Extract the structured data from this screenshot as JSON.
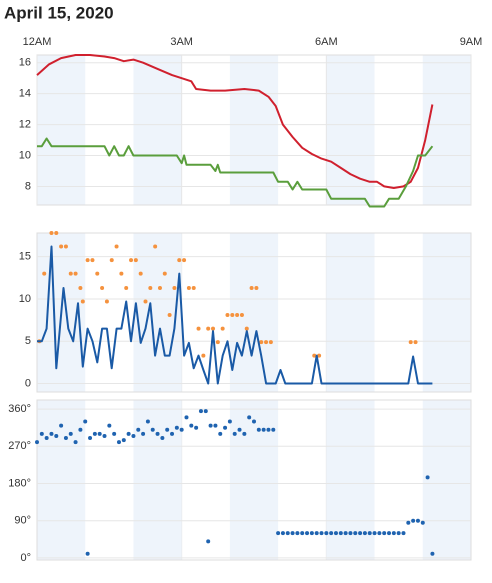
{
  "title": "April 15, 2020",
  "chart_data": [
    {
      "type": "line",
      "xlim": [
        0,
        9
      ],
      "xticks": [
        {
          "value": 0,
          "label": "12AM"
        },
        {
          "value": 3,
          "label": "3AM"
        },
        {
          "value": 6,
          "label": "6AM"
        },
        {
          "value": 9,
          "label": "9AM"
        }
      ],
      "ylim": [
        6.8,
        16.5
      ],
      "yticks": [
        8,
        10,
        12,
        14,
        16
      ],
      "grid": true,
      "series": [
        {
          "color": "#d0202e",
          "mode": "lines",
          "x": [
            0,
            0.25,
            0.5,
            0.8,
            1.1,
            1.4,
            1.6,
            1.8,
            2.0,
            2.2,
            2.5,
            2.8,
            3.0,
            3.2,
            3.3,
            3.6,
            3.9,
            4.3,
            4.6,
            4.8,
            4.95,
            5.1,
            5.3,
            5.5,
            5.7,
            5.9,
            6.1,
            6.3,
            6.5,
            6.7,
            6.9,
            7.05,
            7.2,
            7.4,
            7.6,
            7.75,
            7.9,
            8.05,
            8.2
          ],
          "values": [
            15.2,
            15.9,
            16.3,
            16.5,
            16.5,
            16.4,
            16.3,
            16.1,
            16.2,
            16.0,
            15.6,
            15.2,
            15.0,
            14.8,
            14.3,
            14.2,
            14.2,
            14.3,
            14.2,
            13.8,
            13.2,
            12.0,
            11.2,
            10.5,
            10.1,
            9.8,
            9.6,
            9.2,
            8.8,
            8.5,
            8.3,
            8.3,
            8.0,
            7.9,
            8.0,
            8.3,
            9.2,
            11.0,
            13.3
          ]
        },
        {
          "color": "#5a9e3c",
          "mode": "lines",
          "x": [
            0,
            0.1,
            0.2,
            0.3,
            1.4,
            1.5,
            1.6,
            1.7,
            1.8,
            1.9,
            2.0,
            2.9,
            3.0,
            3.05,
            3.1,
            3.6,
            3.7,
            3.75,
            3.8,
            4.9,
            5.0,
            5.2,
            5.3,
            5.4,
            5.5,
            6.0,
            6.1,
            6.8,
            6.9,
            7.2,
            7.3,
            7.5,
            7.65,
            7.8,
            7.9,
            8.05,
            8.2
          ],
          "values": [
            10.6,
            10.6,
            11.1,
            10.6,
            10.6,
            10.0,
            10.6,
            10.0,
            10.0,
            10.6,
            10.0,
            10.0,
            9.5,
            10.0,
            9.4,
            9.4,
            9.0,
            9.4,
            8.9,
            8.9,
            8.3,
            8.3,
            7.8,
            8.3,
            7.8,
            7.8,
            7.2,
            7.2,
            6.7,
            6.7,
            7.2,
            7.2,
            8.0,
            9.0,
            10.0,
            10.0,
            10.6
          ]
        }
      ]
    },
    {
      "type": "line",
      "xlim": [
        0,
        9
      ],
      "ylim": [
        -1,
        17.8
      ],
      "yticks": [
        0,
        5,
        10,
        15
      ],
      "grid": true,
      "series": [
        {
          "color": "#f5923e",
          "mode": "markers",
          "x": [
            0.05,
            0.15,
            0.3,
            0.4,
            0.5,
            0.6,
            0.7,
            0.8,
            0.9,
            0.95,
            1.05,
            1.15,
            1.25,
            1.35,
            1.45,
            1.55,
            1.65,
            1.75,
            1.85,
            1.95,
            2.05,
            2.15,
            2.25,
            2.35,
            2.45,
            2.55,
            2.65,
            2.75,
            2.85,
            2.95,
            3.05,
            3.15,
            3.25,
            3.35,
            3.45,
            3.55,
            3.65,
            3.75,
            3.85,
            3.95,
            4.05,
            4.15,
            4.25,
            4.35,
            4.45,
            4.55,
            4.65,
            4.75,
            4.85,
            5.75,
            5.85,
            7.75,
            7.85
          ],
          "values": [
            5,
            13,
            17.8,
            17.8,
            16.2,
            16.2,
            13,
            13,
            11.3,
            9.7,
            14.6,
            14.6,
            13,
            11.3,
            9.7,
            14.6,
            16.2,
            13,
            11.3,
            14.6,
            14.6,
            13,
            9.7,
            11.3,
            16.2,
            11.3,
            13,
            8.1,
            11.3,
            14.6,
            14.6,
            11.3,
            11.3,
            6.5,
            3.3,
            6.5,
            6.5,
            4.9,
            6.5,
            8.1,
            8.1,
            8.1,
            8.1,
            6.5,
            11.3,
            11.3,
            4.9,
            4.9,
            4.9,
            3.3,
            3.3,
            4.9,
            4.9
          ]
        },
        {
          "color": "#1a5aa6",
          "mode": "lines",
          "x": [
            0,
            0.1,
            0.2,
            0.3,
            0.4,
            0.55,
            0.65,
            0.75,
            0.85,
            0.95,
            1.05,
            1.15,
            1.25,
            1.35,
            1.45,
            1.55,
            1.65,
            1.75,
            1.85,
            1.95,
            2.05,
            2.15,
            2.25,
            2.35,
            2.45,
            2.55,
            2.65,
            2.75,
            2.85,
            2.95,
            3.05,
            3.15,
            3.25,
            3.35,
            3.45,
            3.55,
            3.65,
            3.75,
            3.85,
            3.95,
            4.05,
            4.15,
            4.25,
            4.35,
            4.45,
            4.55,
            4.65,
            4.75,
            4.95,
            5.05,
            5.15,
            5.7,
            5.8,
            5.9,
            7.7,
            7.8,
            7.9,
            8.2
          ],
          "values": [
            5,
            5,
            6.5,
            16.2,
            1.8,
            11.3,
            6.5,
            5,
            9.5,
            2,
            6.5,
            5,
            2.5,
            6.5,
            6.5,
            1.8,
            6.5,
            6.5,
            9.7,
            5,
            9.5,
            4.8,
            6.5,
            9.5,
            3.3,
            6.5,
            3.3,
            3.3,
            6.5,
            13,
            3.3,
            4.8,
            1.8,
            3.3,
            1.6,
            0,
            6.2,
            0,
            3.3,
            5,
            1.6,
            4.8,
            3.3,
            6.2,
            3.3,
            6.2,
            3.3,
            0,
            0,
            1.6,
            0,
            0,
            3.3,
            0,
            0,
            3.2,
            0,
            0
          ]
        }
      ]
    },
    {
      "type": "scatter",
      "xlim": [
        0,
        9
      ],
      "ylim": [
        -5,
        382
      ],
      "yticks": [
        {
          "value": 0,
          "label": "0°"
        },
        {
          "value": 90,
          "label": "90°"
        },
        {
          "value": 180,
          "label": "180°"
        },
        {
          "value": 270,
          "label": "270°"
        },
        {
          "value": 360,
          "label": "360°"
        }
      ],
      "grid": true,
      "series": [
        {
          "color": "#1f63b0",
          "mode": "markers",
          "x": [
            0,
            0.1,
            0.2,
            0.3,
            0.4,
            0.5,
            0.6,
            0.7,
            0.8,
            0.9,
            1.0,
            1.05,
            1.1,
            1.2,
            1.3,
            1.4,
            1.5,
            1.6,
            1.7,
            1.8,
            1.9,
            2.0,
            2.1,
            2.2,
            2.3,
            2.4,
            2.5,
            2.6,
            2.7,
            2.8,
            2.9,
            3.0,
            3.1,
            3.2,
            3.3,
            3.4,
            3.5,
            3.55,
            3.6,
            3.7,
            3.8,
            3.9,
            4.0,
            4.1,
            4.2,
            4.3,
            4.4,
            4.5,
            4.6,
            4.7,
            4.8,
            4.9,
            5.0,
            5.1,
            5.2,
            5.3,
            5.4,
            5.5,
            5.6,
            5.7,
            5.8,
            5.9,
            6.0,
            6.1,
            6.2,
            6.3,
            6.4,
            6.5,
            6.6,
            6.7,
            6.8,
            6.9,
            7.0,
            7.1,
            7.2,
            7.3,
            7.4,
            7.5,
            7.6,
            7.7,
            7.8,
            7.9,
            8.0,
            8.1,
            8.2
          ],
          "values": [
            280,
            300,
            290,
            300,
            295,
            320,
            290,
            300,
            280,
            310,
            330,
            10,
            290,
            300,
            300,
            295,
            320,
            300,
            280,
            285,
            300,
            295,
            310,
            300,
            330,
            310,
            300,
            290,
            310,
            300,
            315,
            310,
            340,
            320,
            315,
            355,
            355,
            40,
            320,
            320,
            300,
            315,
            330,
            300,
            310,
            300,
            340,
            330,
            310,
            310,
            310,
            310,
            60,
            60,
            60,
            60,
            60,
            60,
            60,
            60,
            60,
            60,
            60,
            60,
            60,
            60,
            60,
            60,
            60,
            60,
            60,
            60,
            60,
            60,
            60,
            60,
            60,
            60,
            60,
            85,
            90,
            90,
            85,
            195,
            10
          ]
        }
      ]
    }
  ]
}
